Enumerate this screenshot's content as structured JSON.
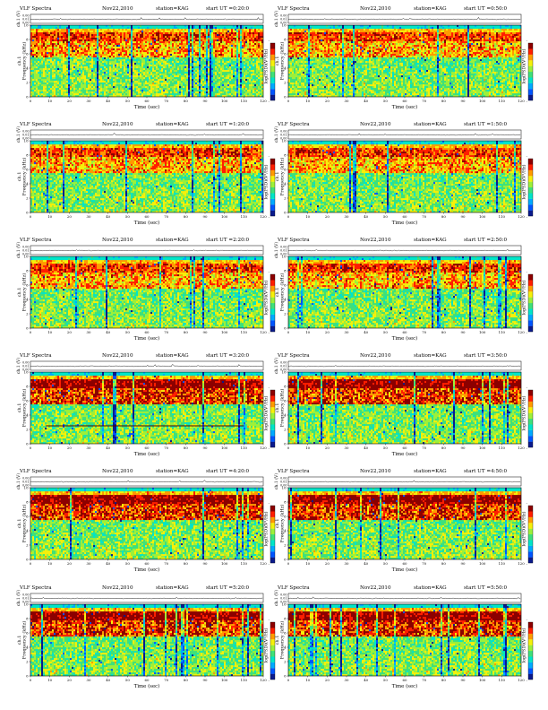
{
  "page": {
    "background": "#ffffff"
  },
  "colors": {
    "colormap": [
      "#0a1a8c",
      "#0055ff",
      "#00aaff",
      "#00e5c8",
      "#3fe07a",
      "#9cf03a",
      "#f5f00a",
      "#ff9a00",
      "#ff1e00",
      "#8c0000"
    ],
    "trace": "#000000",
    "band_line": "#4b0000"
  },
  "common": {
    "title_left": "VLF Spectra",
    "date": "Nov22,2010",
    "station": "station=KAG",
    "ut_prefix": "start  UT  =",
    "ch_label": "ch.1 (V)",
    "ch_ticks": [
      "0.00",
      "0.01",
      "0.00"
    ],
    "freq_label_a": "ch.1",
    "freq_label_b": "Frequency  (kHz)",
    "freq_ticks": [
      "0",
      "2",
      "4",
      "6",
      "8",
      "10"
    ],
    "xlabel": "Time  (sec)",
    "cbar_label": "log(PSD)(V²/Hz)",
    "cbar_ticks": [
      "-",
      "-"
    ]
  },
  "chart_data": [
    {
      "type": "heatmap",
      "title": "VLF Spectra  Nov22,2010  station=KAG  start UT =0:20:0",
      "start_ut": "0:20:0",
      "x": [
        0,
        10,
        20,
        30,
        40,
        50,
        60,
        70,
        80,
        90,
        100,
        110,
        120
      ],
      "xlim": [
        0,
        120
      ],
      "ylim": [
        0,
        10
      ],
      "band": null
    },
    {
      "type": "heatmap",
      "title": "VLF Spectra  Nov22,2010  station=KAG  start UT =0:50:0",
      "start_ut": "0:50:0",
      "x": [
        0,
        10,
        20,
        30,
        40,
        50,
        60,
        70,
        80,
        90,
        100,
        110,
        120
      ],
      "xlim": [
        0,
        120
      ],
      "ylim": [
        0,
        10
      ],
      "band": null
    },
    {
      "type": "heatmap",
      "title": "VLF Spectra  Nov22,2010  station=KAG  start UT =1:20:0",
      "start_ut": "1:20:0",
      "x": [
        0,
        10,
        20,
        30,
        40,
        50,
        60,
        70,
        80,
        90,
        100,
        110,
        120
      ],
      "xlim": [
        0,
        120
      ],
      "ylim": [
        0,
        10
      ],
      "band": null
    },
    {
      "type": "heatmap",
      "title": "VLF Spectra  Nov22,2010  station=KAG  start UT =1:50:0",
      "start_ut": "1:50:0",
      "x": [
        0,
        10,
        20,
        30,
        40,
        50,
        60,
        70,
        80,
        90,
        100,
        110,
        120
      ],
      "xlim": [
        0,
        120
      ],
      "ylim": [
        0,
        10
      ],
      "band": null
    },
    {
      "type": "heatmap",
      "title": "VLF Spectra  Nov22,2010  station=KAG  start UT =2:20:0",
      "start_ut": "2:20:0",
      "x": [
        0,
        10,
        20,
        30,
        40,
        50,
        60,
        70,
        80,
        90,
        100,
        110,
        120
      ],
      "xlim": [
        0,
        120
      ],
      "ylim": [
        0,
        10
      ],
      "band": null
    },
    {
      "type": "heatmap",
      "title": "VLF Spectra  Nov22,2010  station=KAG  start UT =2:50:0",
      "start_ut": "2:50:0",
      "x": [
        0,
        10,
        20,
        30,
        40,
        50,
        60,
        70,
        80,
        90,
        100,
        110,
        120
      ],
      "xlim": [
        0,
        120
      ],
      "ylim": [
        0,
        10
      ],
      "band": null
    },
    {
      "type": "heatmap",
      "title": "VLF Spectra  Nov22,2010  station=KAG  start UT =3:20:0",
      "start_ut": "3:20:0",
      "x": [
        0,
        10,
        20,
        30,
        40,
        50,
        60,
        70,
        80,
        90,
        100,
        110,
        120
      ],
      "xlim": [
        0,
        120
      ],
      "ylim": [
        0,
        10
      ],
      "band": {
        "freq_khz": 2.5,
        "start_s": 8,
        "end_s": 110
      }
    },
    {
      "type": "heatmap",
      "title": "VLF Spectra  Nov22,2010  station=KAG  start UT =3:50:0",
      "start_ut": "3:50:0",
      "x": [
        0,
        10,
        20,
        30,
        40,
        50,
        60,
        70,
        80,
        90,
        100,
        110,
        120
      ],
      "xlim": [
        0,
        120
      ],
      "ylim": [
        0,
        10
      ],
      "band": null
    },
    {
      "type": "heatmap",
      "title": "VLF Spectra  Nov22,2010  station=KAG  start UT =4:20:0",
      "start_ut": "4:20:0",
      "x": [
        0,
        10,
        20,
        30,
        40,
        50,
        60,
        70,
        80,
        90,
        100,
        110,
        120
      ],
      "xlim": [
        0,
        120
      ],
      "ylim": [
        0,
        10
      ],
      "band": null
    },
    {
      "type": "heatmap",
      "title": "VLF Spectra  Nov22,2010  station=KAG  start UT =4:50:0",
      "start_ut": "4:50:0",
      "x": [
        0,
        10,
        20,
        30,
        40,
        50,
        60,
        70,
        80,
        90,
        100,
        110,
        120
      ],
      "xlim": [
        0,
        120
      ],
      "ylim": [
        0,
        10
      ],
      "band": null
    },
    {
      "type": "heatmap",
      "title": "VLF Spectra  Nov22,2010  station=KAG  start UT =5:20:0",
      "start_ut": "5:20:0",
      "x": [
        0,
        10,
        20,
        30,
        40,
        50,
        60,
        70,
        80,
        90,
        100,
        110,
        120
      ],
      "xlim": [
        0,
        120
      ],
      "ylim": [
        0,
        10
      ],
      "band": null
    },
    {
      "type": "heatmap",
      "title": "VLF Spectra  Nov22,2010  station=KAG  start UT =5:50:0",
      "start_ut": "5:50:0",
      "x": [
        0,
        10,
        20,
        30,
        40,
        50,
        60,
        70,
        80,
        90,
        100,
        110,
        120
      ],
      "xlim": [
        0,
        120
      ],
      "ylim": [
        0,
        10
      ],
      "band": null
    }
  ]
}
